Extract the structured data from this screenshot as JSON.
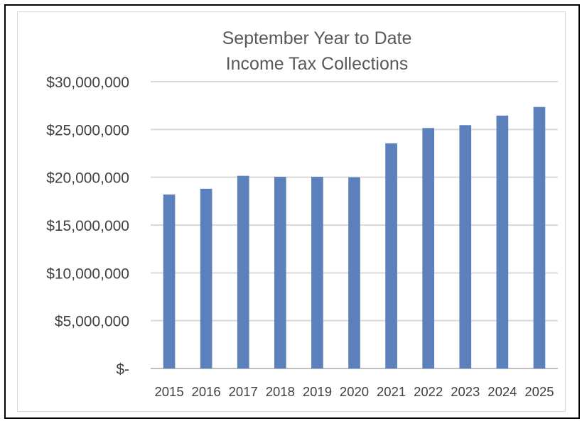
{
  "chart_data": {
    "type": "bar",
    "title_lines": [
      "September Year to Date",
      "Income Tax Collections"
    ],
    "categories": [
      "2015",
      "2016",
      "2017",
      "2018",
      "2019",
      "2020",
      "2021",
      "2022",
      "2023",
      "2024",
      "2025"
    ],
    "values": [
      18200000,
      18800000,
      20150000,
      20050000,
      20050000,
      20000000,
      23550000,
      25150000,
      25450000,
      26450000,
      27350000
    ],
    "ylim": [
      0,
      30000000
    ],
    "y_ticks": [
      {
        "value": 0,
        "label": "$-"
      },
      {
        "value": 5000000,
        "label": "$5,000,000"
      },
      {
        "value": 10000000,
        "label": "$10,000,000"
      },
      {
        "value": 15000000,
        "label": "$15,000,000"
      },
      {
        "value": 20000000,
        "label": "$20,000,000"
      },
      {
        "value": 25000000,
        "label": "$25,000,000"
      },
      {
        "value": 30000000,
        "label": "$30,000,000"
      }
    ],
    "grid": true,
    "legend": "none",
    "bar_color": "#5b80bb",
    "grid_color": "#d9d9d9",
    "axis_color": "#bfbfbf"
  }
}
